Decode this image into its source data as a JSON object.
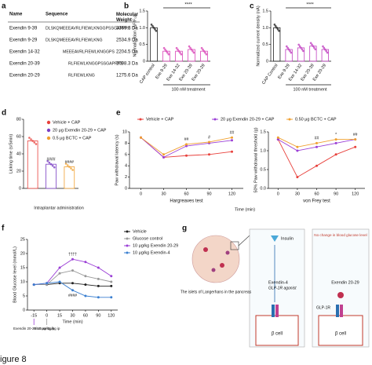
{
  "panel_labels": [
    "a",
    "b",
    "c",
    "d",
    "e",
    "f",
    "g"
  ],
  "caption": "igure 8",
  "table": {
    "header": [
      "Name",
      "Sequence",
      "Molecular Weight"
    ],
    "rows": [
      [
        "Exendin 9-39",
        "DLSKQMEEEAVRLFIEWLKNGGPSSGAPPPS",
        "3369.8 Da"
      ],
      [
        "Exendin 9-29",
        "DLSKQMEEEAVRLFIEWLKNG",
        "2534.9 Da"
      ],
      [
        "Exendin 14-32",
        "MEEEAVRLFIEWLKNGGPS",
        "2204.5 Da"
      ],
      [
        "Exendin 20-39",
        "RLFIEWLKNGGPSSGAPPPS",
        "2098.3 Da"
      ],
      [
        "Exendin 20-29",
        "RLFIEWLKNG",
        "1275.6 Da"
      ]
    ]
  },
  "diagram": {
    "pancreas_label": "The islets of Langerhans in the pancreas",
    "insulin": "Insulin",
    "left": {
      "drug": "Exendin-4",
      "agonist": "GLP-1R agonist",
      "cell": "β cell"
    },
    "right": {
      "note": "No change in blood glucose level",
      "drug": "Exendin 20-29",
      "receptor": "GLP-1R",
      "cell": "β cell"
    }
  },
  "chart_data": [
    {
      "type": "bar",
      "ylabel": "Normalization (ΔF/F₀)",
      "categories": [
        "CAP control",
        "Exe 9-29",
        "Exe 14-32",
        "Exe 20-39",
        "Exe 20-29"
      ],
      "values": [
        1.0,
        0.3,
        0.3,
        0.35,
        0.3
      ],
      "colors": [
        "#222222",
        "#d946b8",
        "#d946b8",
        "#d946b8",
        "#d946b8"
      ],
      "ylim": [
        0,
        1.5
      ],
      "yticks": [
        0,
        0.5,
        {
          "value": 1,
          "label": "1.0"
        },
        1.5
      ],
      "annotations": [
        "****"
      ],
      "xlabel": "100 nM treatment"
    },
    {
      "type": "bar",
      "ylabel": "Normalized current density (nA)",
      "categories": [
        "CAP Control",
        "Exe 9-29",
        "Exe 14-32",
        "Exe 20-39",
        "Exe 20-29"
      ],
      "values": [
        1.0,
        0.35,
        0.4,
        0.45,
        0.35
      ],
      "colors": [
        "#222222",
        "#c040c0",
        "#c040c0",
        "#c040c0",
        "#c040c0"
      ],
      "ylim": [
        0,
        1.5
      ],
      "yticks": [
        0,
        0.5,
        {
          "value": 1,
          "label": "1.0"
        },
        1.5
      ],
      "annotations": [
        "****"
      ],
      "xlabel": "100 nM treatment"
    },
    {
      "type": "bar",
      "ylabel": "Licking time (s/5min)",
      "categories": [
        "Vehicle + CAP",
        "20 μg Exendin 20-29 + CAP",
        "0.5 μg BCTC + CAP"
      ],
      "values": [
        55,
        28,
        25
      ],
      "colors": [
        "#e8413c",
        "#7b3fc4",
        "#f0a030"
      ],
      "ylim": [
        0,
        80
      ],
      "yticks": [
        0,
        20,
        40,
        60,
        80
      ],
      "annotations": [
        "####",
        "####"
      ],
      "xlabel": "Intraplantar administration"
    },
    {
      "type": "line",
      "ylabel": "Paw withdrawal latency (s)",
      "categories": [
        "0",
        "30",
        "60",
        "90",
        "120"
      ],
      "series": [
        {
          "name": "Vehicle + CAP",
          "color": "#e8413c",
          "values": [
            9,
            5.5,
            5.8,
            6,
            6.5
          ]
        },
        {
          "name": "20 μg Exendin 20-29 + CAP",
          "color": "#9b3fd6",
          "values": [
            9,
            5.5,
            7.5,
            8,
            8.5
          ]
        },
        {
          "name": "0.50 μg BCTC + CAP",
          "color": "#f0a030",
          "values": [
            9,
            6,
            7.8,
            8.2,
            9
          ]
        }
      ],
      "ylim": [
        0,
        10
      ],
      "yticks": [
        0,
        2,
        4,
        6,
        8,
        10
      ],
      "subtitle": "Hargreaves test",
      "xlabel": "Time (min)",
      "annotations": [
        "##",
        "#",
        "##"
      ]
    },
    {
      "type": "line",
      "ylabel": "50% Paw withdrawal threshold (g)",
      "categories": [
        "0",
        "30",
        "60",
        "90",
        "120"
      ],
      "series": [
        {
          "color": "#e8413c",
          "values": [
            1.3,
            0.3,
            0.6,
            0.9,
            1.1
          ]
        },
        {
          "color": "#9b3fd6",
          "values": [
            1.3,
            1.0,
            1.1,
            1.2,
            1.3
          ]
        },
        {
          "color": "#f0a030",
          "values": [
            1.35,
            1.1,
            1.2,
            1.3,
            1.3
          ]
        }
      ],
      "ylim": [
        0,
        1.5
      ],
      "yticks": [
        {
          "value": 0,
          "label": "0.0"
        },
        0.5,
        {
          "value": 1,
          "label": "1.0"
        },
        1.5
      ],
      "subtitle": "von Frey test",
      "annotations": [
        "##",
        "*",
        "##"
      ]
    },
    {
      "type": "line",
      "ylabel": "Blood Glucose level (mmol/L)",
      "categories": [
        "-15",
        "0",
        "15",
        "30",
        "60",
        "90",
        "120"
      ],
      "series": [
        {
          "name": "Vehicle",
          "color": "#222222",
          "values": [
            9,
            9,
            9.5,
            9.5,
            9,
            8.5,
            8.5
          ]
        },
        {
          "name": "Glucose control",
          "color": "#999999",
          "values": [
            9,
            9,
            13,
            14,
            12,
            11,
            10
          ]
        },
        {
          "name": "10 μg/kg Exendin 20-29",
          "color": "#9b3fd6",
          "values": [
            9,
            9.5,
            15,
            18,
            17,
            15,
            12
          ]
        },
        {
          "name": "10 μg/kg Exendin-4",
          "color": "#3a7fd0",
          "values": [
            9,
            9.5,
            10,
            7,
            5,
            4.5,
            4.5
          ]
        }
      ],
      "ylim": [
        0,
        25
      ],
      "yticks": [
        0,
        5,
        10,
        15,
        20,
        25
      ],
      "xlabel": "Time (min)",
      "annotations": [
        "††††",
        "####"
      ],
      "notes": [
        "Exendin 20-29 10 μg/kg ip",
        "Glucose 2g/kg ip"
      ]
    }
  ]
}
